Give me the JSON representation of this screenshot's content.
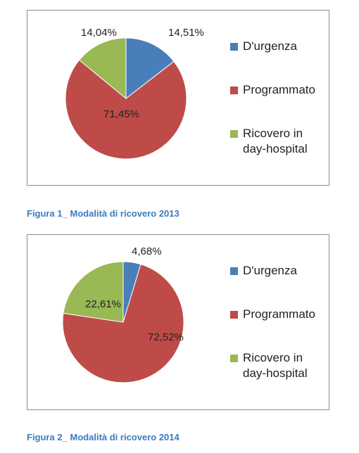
{
  "colors": {
    "durgenza": "#4a7ebb",
    "programmato": "#be4b48",
    "dayhospital": "#98b954"
  },
  "legend": [
    "D'urgenza",
    "Programmato",
    "Ricovero in day-hospital"
  ],
  "figures": [
    {
      "caption": "Figura 1_ Modalità di ricovero 2013"
    },
    {
      "caption": "Figura 2_ Modalità di ricovero 2014"
    }
  ],
  "chart_data": [
    {
      "type": "pie",
      "title": "Figura 1_ Modalità di ricovero 2013",
      "categories": [
        "D'urgenza",
        "Programmato",
        "Ricovero in day-hospital"
      ],
      "values": [
        14.51,
        71.45,
        14.04
      ],
      "labels": [
        "14,51%",
        "71,45%",
        "14,04%"
      ],
      "legend_position": "right"
    },
    {
      "type": "pie",
      "title": "Figura 2_ Modalità di ricovero 2014",
      "categories": [
        "D'urgenza",
        "Programmato",
        "Ricovero in day-hospital"
      ],
      "values": [
        4.68,
        72.52,
        22.61
      ],
      "labels": [
        "4,68%",
        "72,52%",
        "22,61%"
      ],
      "legend_position": "right"
    }
  ]
}
